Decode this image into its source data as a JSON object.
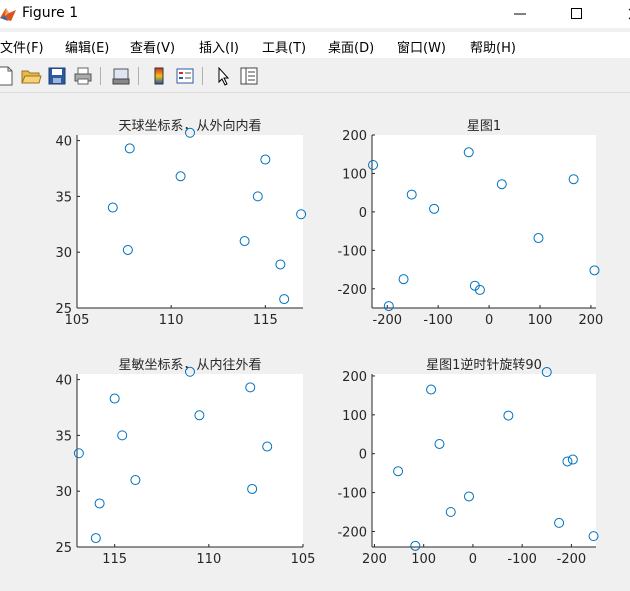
{
  "window": {
    "title": "Figure 1",
    "icon": "matlab-figure-icon"
  },
  "menu": {
    "items": [
      "文件(F)",
      "编辑(E)",
      "查看(V)",
      "插入(I)",
      "工具(T)",
      "桌面(D)",
      "窗口(W)",
      "帮助(H)"
    ]
  },
  "toolbar": {
    "buttons": [
      "new-figure-icon",
      "open-file-icon",
      "save-icon",
      "print-icon",
      "link-plot-icon",
      "insert-colorbar-icon",
      "insert-legend-icon",
      "edit-plot-arrow-icon",
      "property-inspector-icon"
    ]
  },
  "colors": {
    "marker": "#0072bd",
    "axes_background": "#ffffff",
    "figure_background": "#f0f0f0"
  },
  "chart_data": [
    {
      "type": "scatter",
      "title": "天球坐标系，从外向内看",
      "xlim": [
        105,
        117
      ],
      "ylim": [
        25,
        40.5
      ],
      "xticks": [
        105,
        110,
        115
      ],
      "yticks": [
        25,
        30,
        35,
        40
      ],
      "x_reversed": false,
      "points": [
        {
          "x": 106.9,
          "y": 34.0
        },
        {
          "x": 107.8,
          "y": 39.3
        },
        {
          "x": 107.7,
          "y": 30.2
        },
        {
          "x": 110.5,
          "y": 36.8
        },
        {
          "x": 111.0,
          "y": 40.7
        },
        {
          "x": 113.9,
          "y": 31.0
        },
        {
          "x": 114.6,
          "y": 35.0
        },
        {
          "x": 115.0,
          "y": 38.3
        },
        {
          "x": 115.8,
          "y": 28.9
        },
        {
          "x": 116.0,
          "y": 25.8
        },
        {
          "x": 116.9,
          "y": 33.4
        }
      ],
      "marker": "circle"
    },
    {
      "type": "scatter",
      "title": "星图1",
      "xlim": [
        -230,
        210
      ],
      "ylim": [
        -250,
        200
      ],
      "xticks": [
        -200,
        -100,
        0,
        100,
        200
      ],
      "yticks": [
        -200,
        -100,
        0,
        100,
        200
      ],
      "x_reversed": false,
      "points": [
        {
          "x": -228,
          "y": 122
        },
        {
          "x": -197,
          "y": -245
        },
        {
          "x": -168,
          "y": -175
        },
        {
          "x": -152,
          "y": 45
        },
        {
          "x": -108,
          "y": 8
        },
        {
          "x": -40,
          "y": 155
        },
        {
          "x": -28,
          "y": -192
        },
        {
          "x": -18,
          "y": -203
        },
        {
          "x": 25,
          "y": 72
        },
        {
          "x": 97,
          "y": -68
        },
        {
          "x": 166,
          "y": 85
        },
        {
          "x": 207,
          "y": -152
        }
      ],
      "marker": "circle"
    },
    {
      "type": "scatter",
      "title": "星敏坐标系，从内往外看",
      "xlim": [
        105,
        117
      ],
      "ylim": [
        25,
        40.5
      ],
      "xticks": [
        105,
        110,
        115
      ],
      "yticks": [
        25,
        30,
        35,
        40
      ],
      "x_reversed": true,
      "points": [
        {
          "x": 116.9,
          "y": 33.4
        },
        {
          "x": 116.0,
          "y": 25.8
        },
        {
          "x": 115.8,
          "y": 28.9
        },
        {
          "x": 115.0,
          "y": 38.3
        },
        {
          "x": 114.6,
          "y": 35.0
        },
        {
          "x": 113.9,
          "y": 31.0
        },
        {
          "x": 111.0,
          "y": 40.7
        },
        {
          "x": 110.5,
          "y": 36.8
        },
        {
          "x": 107.8,
          "y": 39.3
        },
        {
          "x": 107.7,
          "y": 30.2
        },
        {
          "x": 106.9,
          "y": 34.0
        }
      ],
      "marker": "circle"
    },
    {
      "type": "scatter",
      "title": "星图1逆时针旋转90",
      "xlim": [
        -250,
        205
      ],
      "ylim": [
        -240,
        205
      ],
      "xticks": [
        -200,
        -100,
        0,
        100,
        200
      ],
      "yticks": [
        -200,
        -100,
        0,
        100,
        200
      ],
      "x_reversed": true,
      "points": [
        {
          "x": 152,
          "y": -45
        },
        {
          "x": 117,
          "y": -237
        },
        {
          "x": 85,
          "y": 165
        },
        {
          "x": 68,
          "y": 25
        },
        {
          "x": 45,
          "y": -150
        },
        {
          "x": 8,
          "y": -110
        },
        {
          "x": -72,
          "y": 98
        },
        {
          "x": -150,
          "y": 210
        },
        {
          "x": -175,
          "y": -178
        },
        {
          "x": -192,
          "y": -20
        },
        {
          "x": -203,
          "y": -15
        },
        {
          "x": -245,
          "y": -212
        }
      ],
      "marker": "circle"
    }
  ]
}
